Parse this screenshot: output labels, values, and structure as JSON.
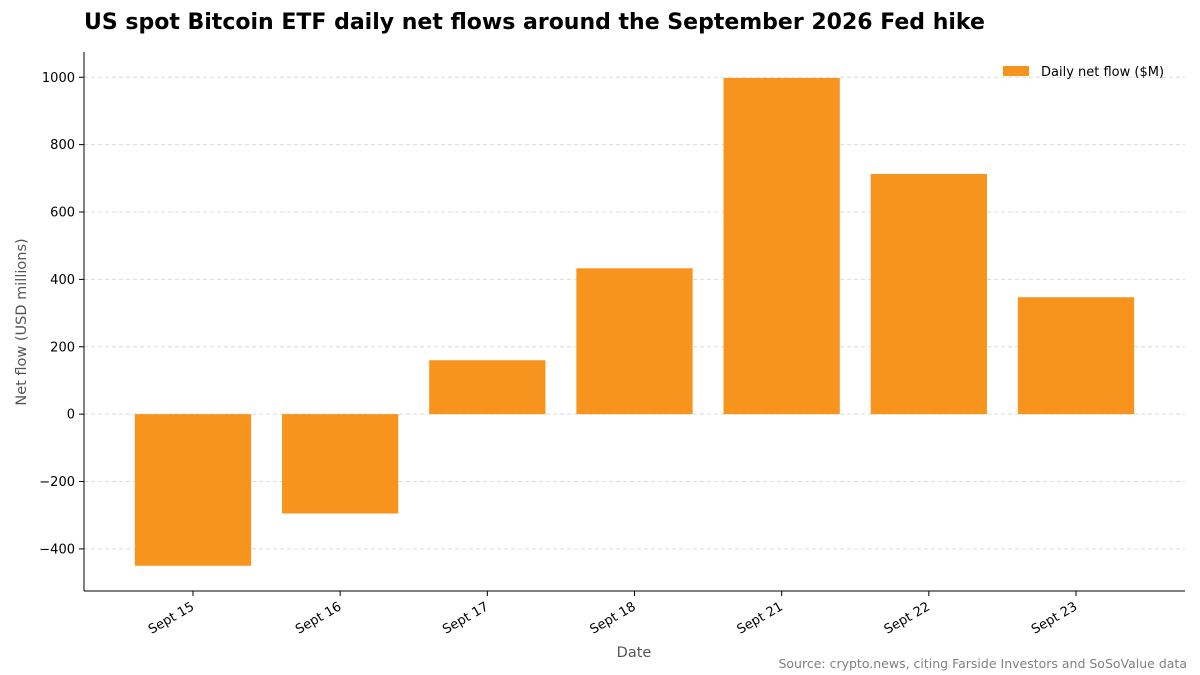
{
  "chart_data": {
    "type": "bar",
    "title": "US spot Bitcoin ETF daily net flows around the September 2026 Fed hike",
    "xlabel": "Date",
    "ylabel": "Net flow (USD millions)",
    "categories": [
      "Sept 15",
      "Sept 16",
      "Sept 17",
      "Sept 18",
      "Sept 21",
      "Sept 22",
      "Sept 23"
    ],
    "series": [
      {
        "name": "Daily net flow ($M)",
        "values": [
          -450,
          -295,
          160,
          433,
          998,
          713,
          347
        ]
      }
    ],
    "yticks": [
      -400,
      -200,
      0,
      200,
      400,
      600,
      800,
      1000
    ],
    "ylim": [
      -525,
      1075
    ],
    "grid": "y-dashed",
    "legend": "top-right",
    "bar_color": "#F7941D",
    "source": "Source: crypto.news, citing Farside Investors and SoSoValue data"
  }
}
